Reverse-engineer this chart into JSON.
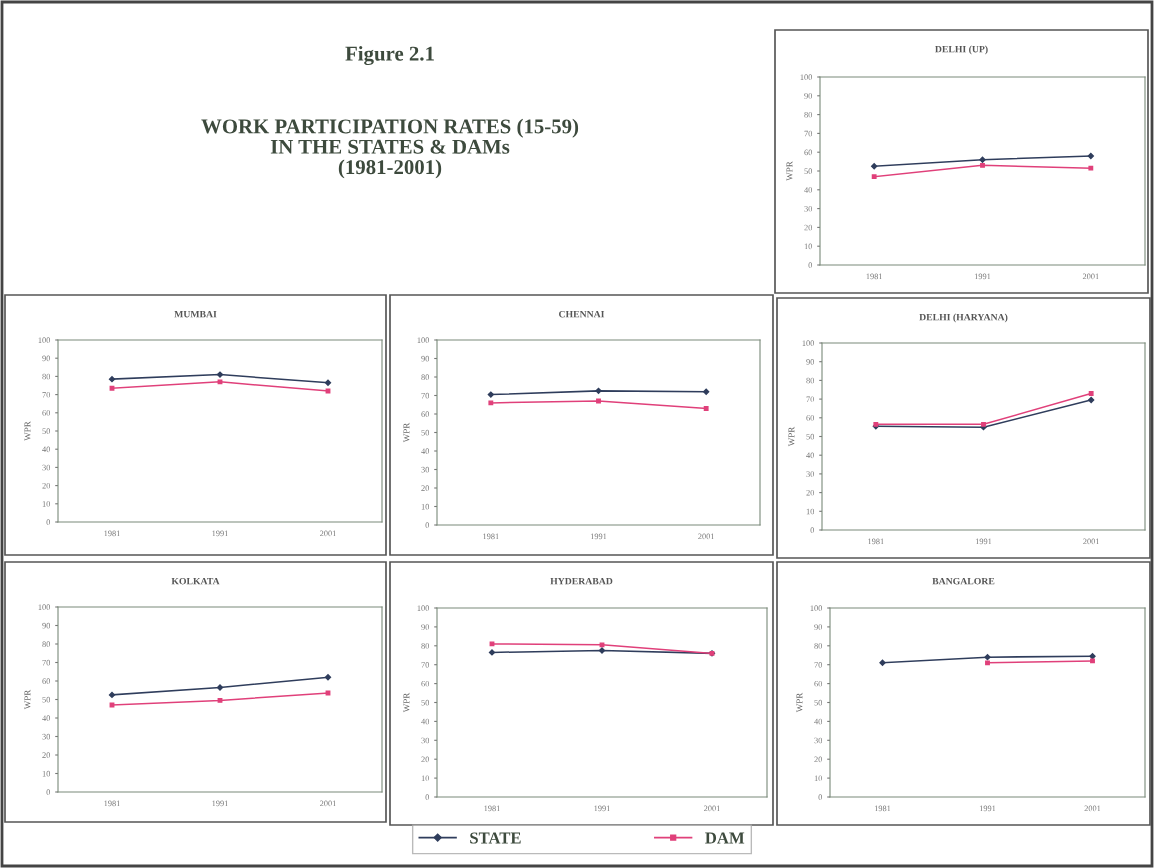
{
  "chart_data": [
    {
      "type": "other",
      "title": "Figure 2.1",
      "subtitle": "WORK PARTICIPATION RATES (15-59)\nIN THE STATES & DAMs\n(1981-2001)"
    },
    {
      "type": "line",
      "title": "DELHI (UP)",
      "ylabel": "WPR",
      "categories": [
        "1981",
        "1991",
        "2001"
      ],
      "ylim": [
        0,
        100
      ],
      "yticks": [
        0,
        10,
        20,
        30,
        40,
        50,
        60,
        70,
        80,
        90,
        100
      ],
      "legend": "bottom",
      "series": [
        {
          "name": "STATE",
          "color": "#2f3d5c",
          "marker": "diamond",
          "values": [
            52.5,
            56,
            58
          ]
        },
        {
          "name": "DAM",
          "color": "#e0407a",
          "marker": "square",
          "values": [
            47,
            53,
            51.5
          ]
        }
      ]
    },
    {
      "type": "line",
      "title": "MUMBAI",
      "ylabel": "WPR",
      "categories": [
        "1981",
        "1991",
        "2001"
      ],
      "ylim": [
        0,
        100
      ],
      "yticks": [
        0,
        10,
        20,
        30,
        40,
        50,
        60,
        70,
        80,
        90,
        100
      ],
      "series": [
        {
          "color": "#2f3d5c",
          "marker": "diamond",
          "values": [
            78.5,
            81,
            76.5
          ]
        },
        {
          "color": "#e0407a",
          "marker": "square",
          "values": [
            73.5,
            77,
            72
          ]
        }
      ]
    },
    {
      "type": "line",
      "title": "CHENNAI",
      "ylabel": "WPR",
      "categories": [
        "1981",
        "1991",
        "2001"
      ],
      "ylim": [
        0,
        100
      ],
      "yticks": [
        0,
        10,
        20,
        30,
        40,
        50,
        60,
        70,
        80,
        90,
        100
      ],
      "series": [
        {
          "color": "#2f3d5c",
          "marker": "diamond",
          "values": [
            70.5,
            72.5,
            72
          ]
        },
        {
          "color": "#e0407a",
          "marker": "square",
          "values": [
            66,
            67,
            63
          ]
        }
      ]
    },
    {
      "type": "line",
      "title": "DELHI (HARYANA)",
      "ylabel": "WPR",
      "categories": [
        "1981",
        "1991",
        "2001"
      ],
      "ylim": [
        0,
        100
      ],
      "yticks": [
        0,
        10,
        20,
        30,
        40,
        50,
        60,
        70,
        80,
        90,
        100
      ],
      "series": [
        {
          "color": "#2f3d5c",
          "marker": "diamond",
          "values": [
            55.5,
            55,
            69.5
          ]
        },
        {
          "color": "#e0407a",
          "marker": "square",
          "values": [
            56.5,
            56.5,
            73
          ]
        }
      ]
    },
    {
      "type": "line",
      "title": "KOLKATA",
      "ylabel": "WPR",
      "categories": [
        "1981",
        "1991",
        "2001"
      ],
      "ylim": [
        0,
        100
      ],
      "yticks": [
        0,
        10,
        20,
        30,
        40,
        50,
        60,
        70,
        80,
        90,
        100
      ],
      "series": [
        {
          "color": "#2f3d5c",
          "marker": "diamond",
          "values": [
            52.5,
            56.5,
            62
          ]
        },
        {
          "color": "#e0407a",
          "marker": "square",
          "values": [
            47,
            49.5,
            53.5
          ]
        }
      ]
    },
    {
      "type": "line",
      "title": "HYDERABAD",
      "ylabel": "WPR",
      "categories": [
        "1981",
        "1991",
        "2001"
      ],
      "ylim": [
        0,
        100
      ],
      "yticks": [
        0,
        10,
        20,
        30,
        40,
        50,
        60,
        70,
        80,
        90,
        100
      ],
      "series": [
        {
          "color": "#2f3d5c",
          "marker": "diamond",
          "values": [
            76.5,
            77.5,
            76
          ]
        },
        {
          "color": "#e0407a",
          "marker": "square",
          "values": [
            81,
            80.5,
            76
          ]
        }
      ]
    },
    {
      "type": "line",
      "title": "BANGALORE",
      "ylabel": "WPR",
      "categories": [
        "1981",
        "1991",
        "2001"
      ],
      "ylim": [
        0,
        100
      ],
      "yticks": [
        0,
        10,
        20,
        30,
        40,
        50,
        60,
        70,
        80,
        90,
        100
      ],
      "series": [
        {
          "color": "#2f3d5c",
          "marker": "diamond",
          "values": [
            71,
            74,
            74.5
          ]
        },
        {
          "color": "#e0407a",
          "marker": "square",
          "values": [
            null,
            71,
            72
          ]
        }
      ]
    }
  ]
}
